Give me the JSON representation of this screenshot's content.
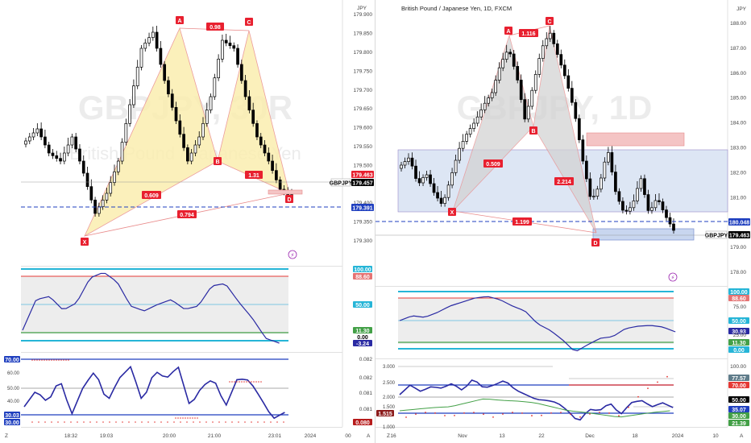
{
  "charts": [
    {
      "watermark": {
        "symbol": "GBPJPY, 30R",
        "name": "British Pound / Japanese Yen"
      },
      "currency": "JPY",
      "price_axis": {
        "ticks": [
          "179.300",
          "179.350",
          "179.400",
          "179.450",
          "179.500",
          "179.550",
          "179.600",
          "179.650",
          "179.700",
          "179.750",
          "179.800",
          "179.850",
          "179.900"
        ]
      },
      "price_badges": {
        "symbol_tag": "GBPJPY",
        "current": "179.463",
        "last": "179.457",
        "level": "179.391"
      },
      "time_axis": {
        "labels": [
          "18:32",
          "19:03",
          "20:00",
          "21:00",
          "23:01",
          "2024",
          "00"
        ],
        "left_corner": "Z",
        "right_corner": "A"
      },
      "pattern": {
        "points": [
          "X",
          "A",
          "B",
          "C",
          "D"
        ],
        "ratios": {
          "xb": "0.609",
          "ac": "0.98",
          "bd": "1.31",
          "xd": "0.794"
        }
      },
      "rsi": {
        "ticks": [
          "100.00",
          "88.60",
          "50.00",
          "11.30",
          "0.00",
          "-3.24"
        ]
      },
      "stoch": {
        "ticks": [
          "0.082",
          "0.082",
          "0.081",
          "0.081",
          "0.080"
        ],
        "left_labels": [
          "70.00",
          "60.00",
          "50.00",
          "40.00",
          "30.03",
          "30.00"
        ],
        "current": "0.080"
      }
    },
    {
      "title": "British Pound / Japanese Yen, 1D, FXCM",
      "watermark": {
        "symbol": "GBPJPY, 1D",
        "name": "British Pound / Japanese Yen"
      },
      "currency": "JPY",
      "price_axis": {
        "ticks": [
          "178.00",
          "179.00",
          "180.00",
          "181.00",
          "182.00",
          "183.00",
          "184.00",
          "185.00",
          "186.00",
          "187.00",
          "188.00",
          "189.00"
        ]
      },
      "price_badges": {
        "symbol_tag": "GBPJPY",
        "current": "179.463",
        "level": "180.048"
      },
      "time_axis": {
        "labels": [
          "16",
          "Nov",
          "13",
          "22",
          "Dec",
          "18",
          "2024",
          "10"
        ],
        "left_corner": "Z",
        "right_corner": "A"
      },
      "pattern": {
        "points": [
          "X",
          "A",
          "B",
          "C",
          "D"
        ],
        "ratios": {
          "xb": "0.509",
          "ac": "1.116",
          "bd": "2.214",
          "xd": "1.199"
        }
      },
      "rsi": {
        "ticks": [
          "100.00",
          "88.60",
          "75.00",
          "50.00",
          "30.93",
          "25.00",
          "11.30",
          "0.00"
        ]
      },
      "stoch": {
        "ticks": [
          "100.00",
          "77.57",
          "70.00",
          "50.00",
          "35.07",
          "30.00",
          "21.39"
        ],
        "left_labels": [
          "3.000",
          "2.500",
          "2.000",
          "1.500",
          "1.515",
          "1.000"
        ]
      }
    }
  ],
  "colors": {
    "bull": "#ffffff",
    "bear": "#000000",
    "wick": "#000000",
    "pattern_fill_yellow": "#fbeeb0",
    "pattern_fill_gray": "#d3d3d3",
    "label_red": "#e8202f",
    "level_blue": "#1f3fbf",
    "band_blue": "#dde6f4",
    "band_red": "#f4c4c4",
    "rsi_line": "#2a2aa3",
    "upper_cyan": "#26b5d7",
    "red_line": "#e53935",
    "green_line": "#43a047",
    "axis_text": "#444444",
    "grid": "#f0f0f0"
  },
  "icons": [
    "lightning-icon"
  ]
}
